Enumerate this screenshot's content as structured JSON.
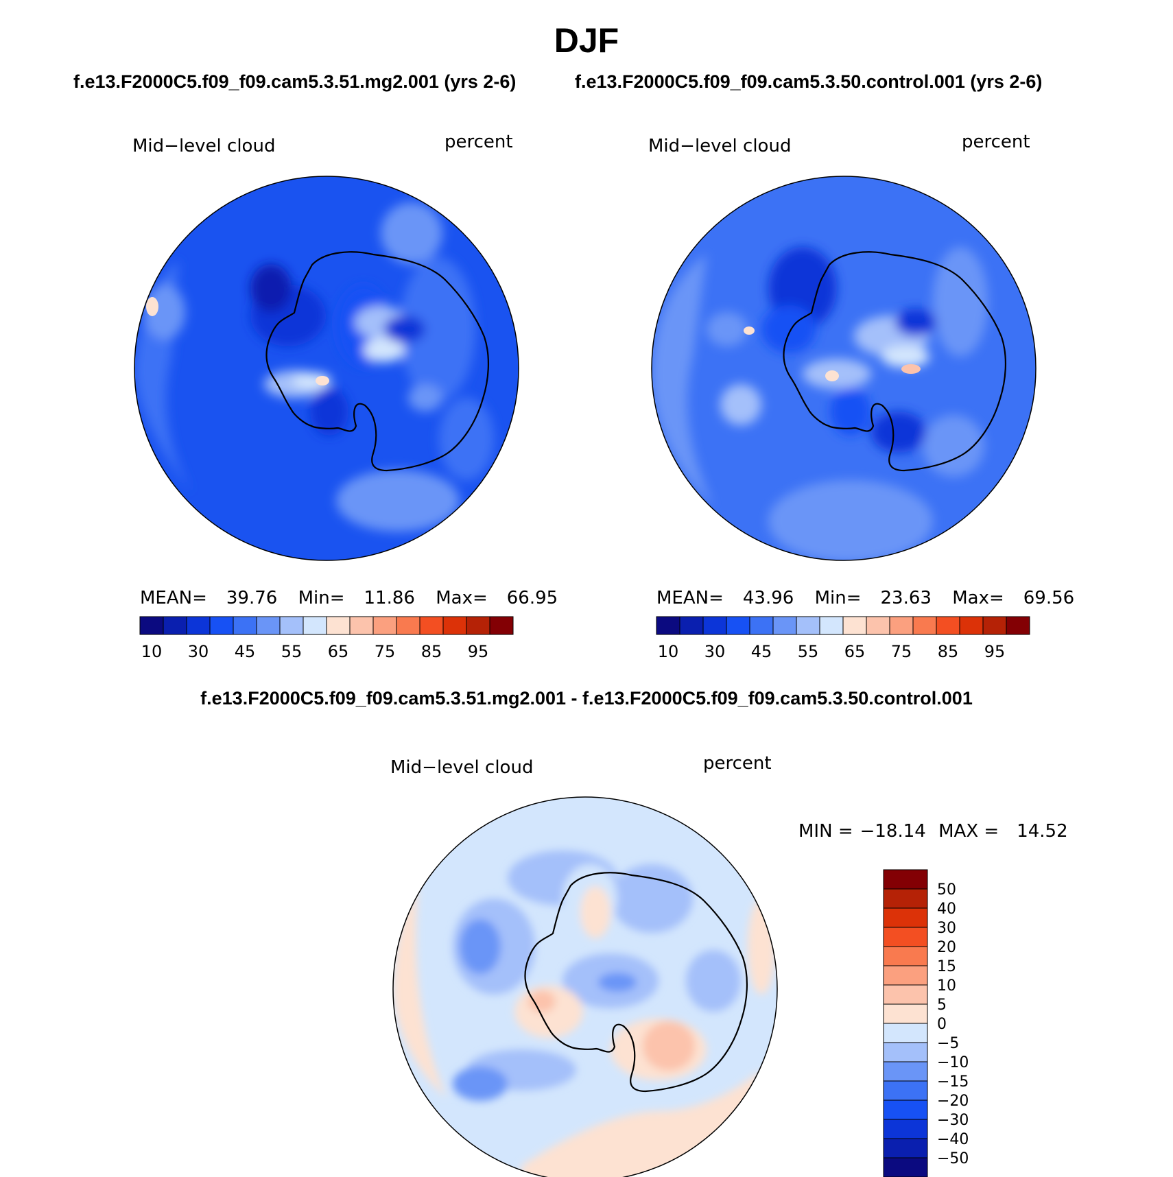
{
  "title": "DJF",
  "case_a": "f.e13.F2000C5.f09_f09.cam5.3.51.mg2.001 (yrs 2-6)",
  "case_b": "f.e13.F2000C5.f09_f09.cam5.3.50.control.001 (yrs 2-6)",
  "diff_title": "f.e13.F2000C5.f09_f09.cam5.3.51.mg2.001 - f.e13.F2000C5.f09_f09.cam5.3.50.control.001",
  "panels": [
    {
      "variable": "Mid−level cloud",
      "units": "percent",
      "stats": {
        "mean_label": "MEAN=",
        "mean": "39.76",
        "min_label": "Min=",
        "min": "11.86",
        "max_label": "Max=",
        "max": "66.95"
      }
    },
    {
      "variable": "Mid−level cloud",
      "units": "percent",
      "stats": {
        "mean_label": "MEAN=",
        "mean": "43.96",
        "min_label": "Min=",
        "min": "23.63",
        "max_label": "Max=",
        "max": "69.56"
      }
    },
    {
      "variable": "Mid−level cloud",
      "units": "percent",
      "stats": {
        "min_label": "MIN =",
        "min": "−18.14",
        "max_label": "MAX =",
        "max": "14.52"
      }
    }
  ],
  "colorbar_abs": {
    "labels": [
      "10",
      "30",
      "45",
      "55",
      "65",
      "75",
      "85",
      "95"
    ],
    "colors": [
      "#0b0a80",
      "#0a1faf",
      "#0c35d8",
      "#1751f4",
      "#3c72f5",
      "#6a95f7",
      "#a4c0fa",
      "#d3e6fd",
      "#fde2d2",
      "#fcc3ac",
      "#fba07f",
      "#f97a4f",
      "#f34f22",
      "#dc3208",
      "#b52206",
      "#830004"
    ]
  },
  "colorbar_diff": {
    "labels": [
      "50",
      "40",
      "30",
      "20",
      "15",
      "10",
      "5",
      "0",
      "−5",
      "−10",
      "−15",
      "−20",
      "−30",
      "−40",
      "−50"
    ],
    "colors": [
      "#830004",
      "#b52206",
      "#dc3208",
      "#f34f22",
      "#f97a4f",
      "#fba07f",
      "#fcc3ac",
      "#fde2d2",
      "#d3e6fd",
      "#a4c0fa",
      "#6a95f7",
      "#3c72f5",
      "#1751f4",
      "#0c35d8",
      "#0a1faf",
      "#0b0a80"
    ]
  }
}
